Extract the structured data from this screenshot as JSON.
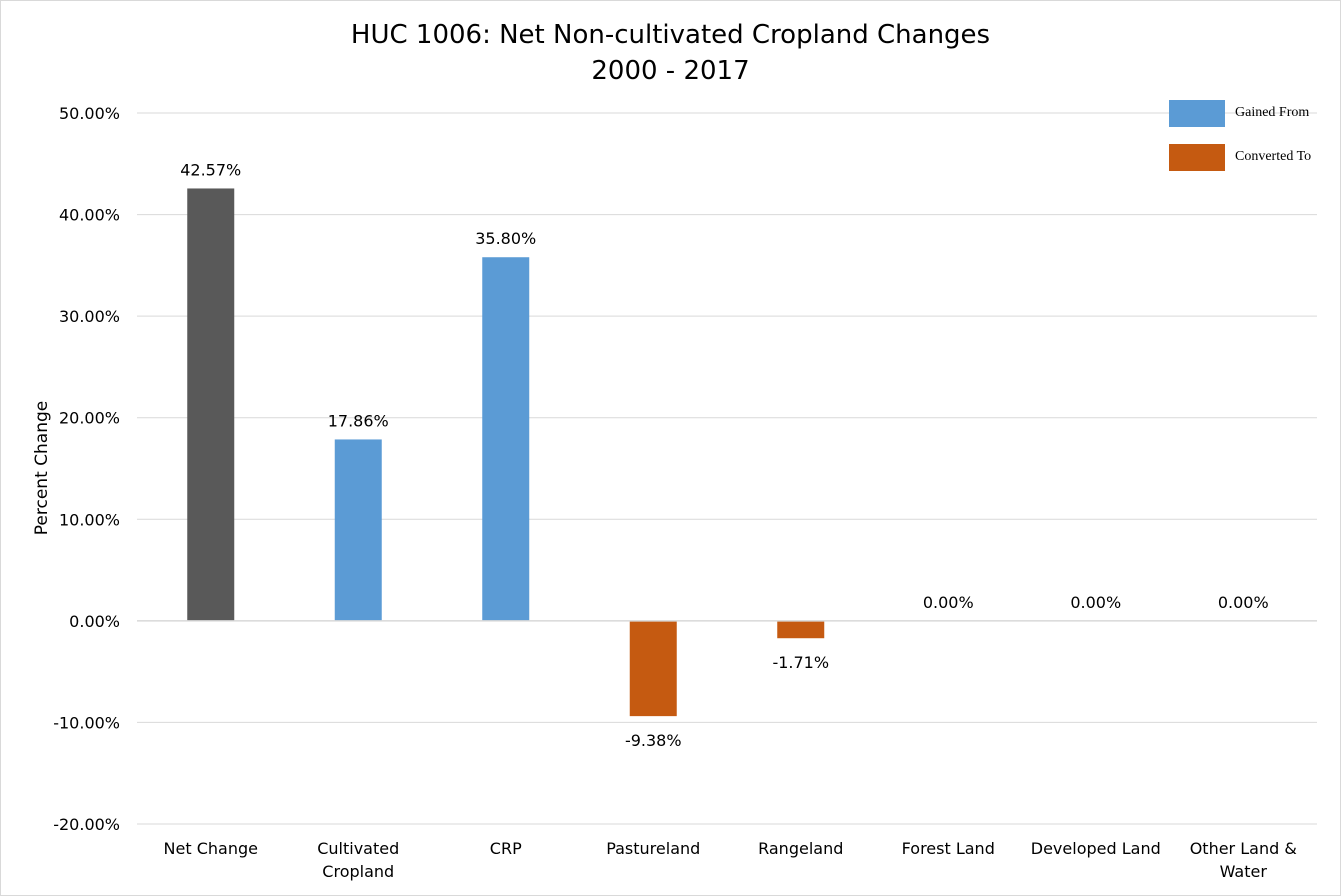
{
  "chart_data": {
    "type": "bar",
    "title": "HUC 1006: Net Non-cultivated Cropland Changes",
    "subtitle": "2000 - 2017",
    "xlabel": "",
    "ylabel": "Percent Change",
    "ylim": [
      -20,
      50
    ],
    "yticks": [
      "50.00%",
      "40.00%",
      "30.00%",
      "20.00%",
      "10.00%",
      "0.00%",
      "-10.00%",
      "-20.00%"
    ],
    "ytick_values": [
      50,
      40,
      30,
      20,
      10,
      0,
      -10,
      -20
    ],
    "grid": true,
    "legend_position": "top-right",
    "categories": [
      [
        "Net Change"
      ],
      [
        "Cultivated",
        "Cropland"
      ],
      [
        "CRP"
      ],
      [
        "Pastureland"
      ],
      [
        "Rangeland"
      ],
      [
        "Forest Land"
      ],
      [
        "Developed Land"
      ],
      [
        "Other Land &",
        "Water"
      ]
    ],
    "values": [
      42.57,
      17.86,
      35.8,
      -9.38,
      -1.71,
      0.0,
      0.0,
      0.0
    ],
    "data_labels": [
      "42.57%",
      "17.86%",
      "35.80%",
      "-9.38%",
      "-1.71%",
      "0.00%",
      "0.00%",
      "0.00%"
    ],
    "bar_groups": [
      "net",
      "gained",
      "gained",
      "converted",
      "converted",
      "converted",
      "converted",
      "converted"
    ],
    "legend": [
      {
        "name": "Gained From",
        "group": "gained"
      },
      {
        "name": "Converted To",
        "group": "converted"
      }
    ],
    "colors": {
      "net": "#595959",
      "gained": "#5b9bd5",
      "converted": "#c55a11",
      "grid": "#d9d9d9"
    }
  }
}
